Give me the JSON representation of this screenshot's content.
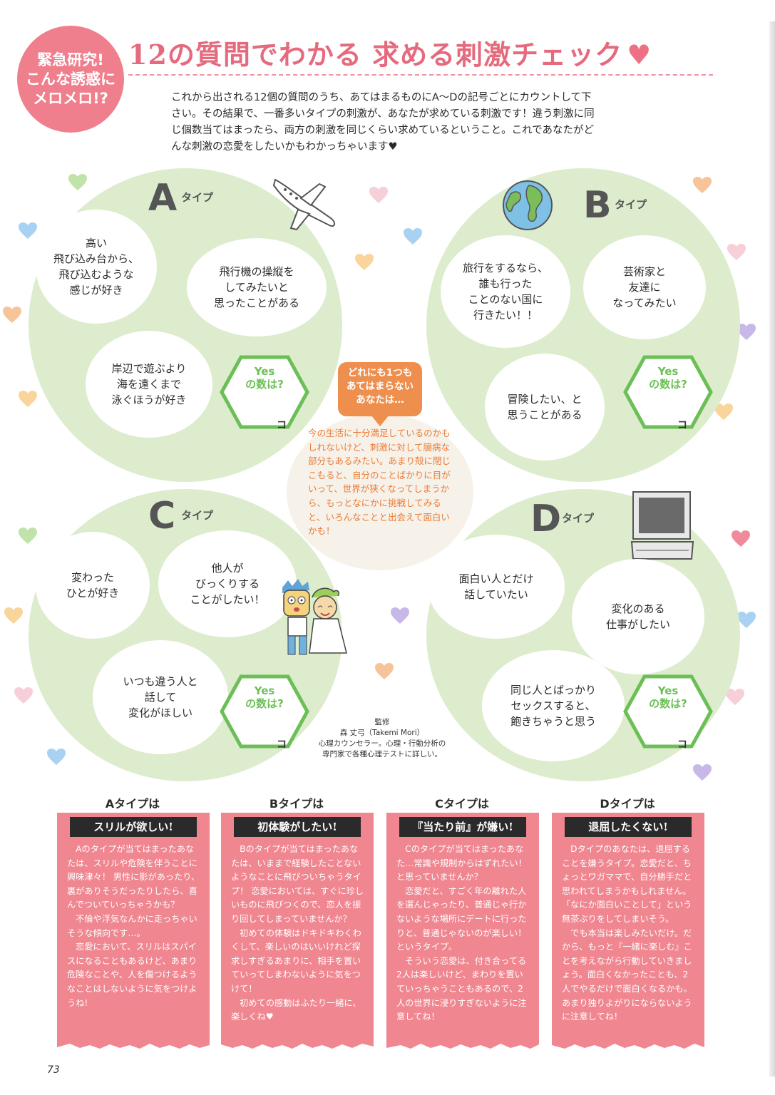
{
  "header": {
    "badge_lines": [
      "緊急研究!",
      "こんな誘惑に",
      "メロメロ!?"
    ],
    "title": "12の質問でわかる 求める刺激チェック",
    "title_heart": "♥",
    "intro": "これから出される12個の質問のうち、あてはまるものにA〜Dの記号ごとにカウントして下さい。その結果で、一番多いタイプの刺激が、あなたが求めている刺激です！違う刺激に同じ個数当てはまったら、両方の刺激を同じくらい求めているということ。これであなたがどんな刺激の恋愛をしたいかもわかっちゃいます♥"
  },
  "types": {
    "a": {
      "letter": "A",
      "word": "タイプ",
      "q1": "高い\n飛び込み台から、\n飛び込むような\n感じが好き",
      "q2": "飛行機の操縦を\nしてみたいと\n思ったことがある",
      "q3": "岸辺で遊ぶより\n海を遠くまで\n泳ぐほうが好き",
      "yes": "Yes\nの数は?",
      "unit": "コ",
      "icon": "airplane-icon"
    },
    "b": {
      "letter": "B",
      "word": "タイプ",
      "q1": "旅行をするなら、\n誰も行った\nことのない国に\n行きたい！！",
      "q2": "芸術家と\n友達に\nなってみたい",
      "q3": "冒険したい、と\n思うことがある",
      "yes": "Yes\nの数は?",
      "unit": "コ",
      "icon": "globe-icon"
    },
    "c": {
      "letter": "C",
      "word": "タイプ",
      "q1": "変わった\nひとが好き",
      "q2": "他人が\nびっくりする\nことがしたい！",
      "q3": "いつも違う人と\n話して\n変化がほしい",
      "yes": "Yes\nの数は?",
      "unit": "コ",
      "icon": "couple-illustration"
    },
    "d": {
      "letter": "D",
      "word": "タイプ",
      "q1": "面白い人とだけ\n話していたい",
      "q2": "変化のある\n仕事がしたい",
      "q3": "同じ人とばっかり\nセックスすると、\n飽きちゃうと思う",
      "yes": "Yes\nの数は?",
      "unit": "コ",
      "icon": "computer-icon"
    }
  },
  "center": {
    "tag": "どれにも1つも\nあてはまらない\nあなたは…",
    "text": "今の生活に十分満足しているのかもしれないけど、刺激に対して臆病な部分もあるみたい。あまり殻に閉じこもると、自分のことばかりに目がいって、世界が狭くなってしまうから、もっとなにかに挑戦してみると、いろんなことと出会えて面白いかも！"
  },
  "supervisor": {
    "heading": "監修",
    "name": "森 丈弓（Takemi Mori）",
    "desc": "心理カウンセラー。心理・行動分析の\n専門家で各種心理テストに詳しい。"
  },
  "results": [
    {
      "heading": "Aタイプは",
      "label": "スリルが欲しい!",
      "body": "　Aのタイプが当てはまったあなたは、スリルや危険を伴うことに興味津々！ 男性に影があったり、裏がありそうだったりしたら、喜んでついていっちゃうかも？\n　不倫や浮気なんかに走っちゃいそうな傾向です…。\n　恋愛において、スリルはスパイスになることもあるけど、あまり危険なことや、人を傷つけるようなことはしないように気をつけようね!"
    },
    {
      "heading": "Bタイプは",
      "label": "初体験がしたい!",
      "body": "　Bのタイプが当てはまったあなたは、いままで経験したことないようなことに飛びついちゃうタイプ！ 恋愛においては、すぐに珍しいものに飛びつくので、恋人を振り回してしまっていませんか？\n　初めての体験はドキドキわくわくして、楽しいのはいいけれど探求しすぎるあまりに、相手を置いていってしまわないように気をつけて！\n　初めての感動はふたり一緒に、楽しくね♥"
    },
    {
      "heading": "Cタイプは",
      "label": "『当たり前』が嫌い!",
      "body": "　Cのタイプが当てはまったあなた…常識や規制からはずれたい！と思っていませんか？\n　恋愛だと、すごく年の離れた人を選んじゃったり、普通じゃ行かないような場所にデートに行ったりと、普通じゃないのが楽しい！というタイプ。\n　そういう恋愛は、付き合ってる2人は楽しいけど、まわりを置いていっちゃうこともあるので、2人の世界に浸りすぎないように注意してね！"
    },
    {
      "heading": "Dタイプは",
      "label": "退屈したくない!",
      "body": "　Dタイプのあなたは、退屈することを嫌うタイプ。恋愛だと、ちょっとワガママで、自分勝手だと思われてしまうかもしれません。「なにか面白いことして」という無茶ぶりをしてしまいそう。\n　でも本当は楽しみたいだけ。だから、もっと『一緒に楽しむ』ことを考えながら行動していきましょう。面白くなかったことも、2人でやるだけで面白くなるかも。あまり独りよがりにならないように注意してね！"
    }
  ],
  "page_number": "73",
  "colors": {
    "accent_pink": "#ef7f8c",
    "ring_green": "#dceccd",
    "hex_green": "#6cbf56",
    "center_orange": "#ef8f4e",
    "panel_pink": "#ef8690"
  }
}
